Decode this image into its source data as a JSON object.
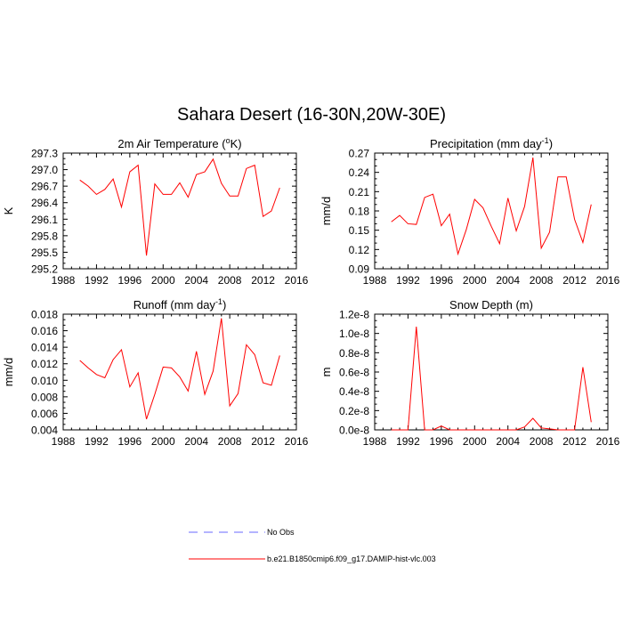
{
  "title": "Sahara Desert (16-30N,20W-30E)",
  "chart_data": [
    {
      "type": "line",
      "title_main": "2m Air Temperature (",
      "title_sup": "o",
      "title_tail": "K)",
      "ylabel": "K",
      "xlim": [
        1988,
        2016
      ],
      "xticks": [
        1988,
        1992,
        1996,
        2000,
        2004,
        2008,
        2012,
        2016
      ],
      "ylim": [
        295.2,
        297.3
      ],
      "yticks": [
        "295.2",
        "295.5",
        "295.8",
        "296.1",
        "296.4",
        "296.7",
        "297.0",
        "297.3"
      ],
      "x": [
        1990,
        1991,
        1992,
        1993,
        1994,
        1995,
        1996,
        1997,
        1998,
        1999,
        2000,
        2001,
        2002,
        2003,
        2004,
        2005,
        2006,
        2007,
        2008,
        2009,
        2010,
        2011,
        2012,
        2013,
        2014
      ],
      "series": [
        {
          "name": "b.e21.B1850cmip6.f09_g17.DAMIP-hist-vlc.003",
          "color": "#ff0000",
          "values": [
            296.81,
            296.7,
            296.55,
            296.64,
            296.83,
            296.32,
            296.96,
            297.08,
            295.44,
            296.74,
            296.55,
            296.55,
            296.76,
            296.5,
            296.91,
            296.96,
            297.19,
            296.75,
            296.52,
            296.52,
            297.02,
            297.08,
            296.15,
            296.25,
            296.67
          ]
        }
      ]
    },
    {
      "type": "line",
      "title_main": "Precipitation (mm day",
      "title_sup": "-1",
      "title_tail": ")",
      "ylabel": "mm/d",
      "xlim": [
        1988,
        2016
      ],
      "xticks": [
        1988,
        1992,
        1996,
        2000,
        2004,
        2008,
        2012,
        2016
      ],
      "ylim": [
        0.09,
        0.27
      ],
      "yticks": [
        "0.09",
        "0.12",
        "0.15",
        "0.18",
        "0.21",
        "0.24",
        "0.27"
      ],
      "x": [
        1990,
        1991,
        1992,
        1993,
        1994,
        1995,
        1996,
        1997,
        1998,
        1999,
        2000,
        2001,
        2002,
        2003,
        2004,
        2005,
        2006,
        2007,
        2008,
        2009,
        2010,
        2011,
        2012,
        2013,
        2014
      ],
      "series": [
        {
          "name": "b.e21.B1850cmip6.f09_g17.DAMIP-hist-vlc.003",
          "color": "#ff0000",
          "values": [
            0.163,
            0.173,
            0.16,
            0.159,
            0.201,
            0.206,
            0.157,
            0.175,
            0.113,
            0.151,
            0.198,
            0.185,
            0.156,
            0.129,
            0.2,
            0.149,
            0.187,
            0.263,
            0.122,
            0.147,
            0.233,
            0.233,
            0.167,
            0.131,
            0.19
          ]
        }
      ]
    },
    {
      "type": "line",
      "title_main": "Runoff (mm day",
      "title_sup": "-1",
      "title_tail": ")",
      "ylabel": "mm/d",
      "xlim": [
        1988,
        2016
      ],
      "xticks": [
        1988,
        1992,
        1996,
        2000,
        2004,
        2008,
        2012,
        2016
      ],
      "ylim": [
        0.004,
        0.018
      ],
      "yticks": [
        "0.004",
        "0.006",
        "0.008",
        "0.010",
        "0.012",
        "0.014",
        "0.016",
        "0.018"
      ],
      "x": [
        1990,
        1991,
        1992,
        1993,
        1994,
        1995,
        1996,
        1997,
        1998,
        1999,
        2000,
        2001,
        2002,
        2003,
        2004,
        2005,
        2006,
        2007,
        2008,
        2009,
        2010,
        2011,
        2012,
        2013,
        2014
      ],
      "series": [
        {
          "name": "b.e21.B1850cmip6.f09_g17.DAMIP-hist-vlc.003",
          "color": "#ff0000",
          "values": [
            0.0124,
            0.0115,
            0.0107,
            0.0103,
            0.0125,
            0.0137,
            0.0092,
            0.0109,
            0.0053,
            0.0083,
            0.0116,
            0.0115,
            0.0104,
            0.0087,
            0.0135,
            0.0083,
            0.0111,
            0.0175,
            0.0069,
            0.0084,
            0.0143,
            0.0131,
            0.0097,
            0.0094,
            0.013
          ]
        }
      ]
    },
    {
      "type": "line",
      "title_main": "Snow Depth (m)",
      "title_sup": "",
      "title_tail": "",
      "ylabel": "m",
      "xlim": [
        1988,
        2016
      ],
      "xticks": [
        1988,
        1992,
        1996,
        2000,
        2004,
        2008,
        2012,
        2016
      ],
      "ylim": [
        0,
        1.2e-08
      ],
      "yticks": [
        "0.0e-8",
        "0.2e-8",
        "0.4e-8",
        "0.6e-8",
        "0.8e-8",
        "1.0e-8",
        "1.2e-8"
      ],
      "x": [
        1990,
        1991,
        1992,
        1993,
        1994,
        1995,
        1996,
        1997,
        1998,
        1999,
        2000,
        2001,
        2002,
        2003,
        2004,
        2005,
        2006,
        2007,
        2008,
        2009,
        2010,
        2011,
        2012,
        2013,
        2014
      ],
      "series": [
        {
          "name": "b.e21.B1850cmip6.f09_g17.DAMIP-hist-vlc.003",
          "color": "#ff0000",
          "values": [
            0,
            0,
            0,
            1.07e-08,
            0,
            0,
            4e-10,
            0,
            0,
            0,
            0,
            0,
            0,
            0,
            0,
            0,
            3e-10,
            1.2e-09,
            2e-10,
            1e-10,
            0,
            0,
            0,
            6.5e-09,
            8e-10
          ]
        }
      ]
    }
  ],
  "legend": [
    {
      "label": "No Obs",
      "color": "#6a6aff",
      "dash": true
    },
    {
      "label": "b.e21.B1850cmip6.f09_g17.DAMIP-hist-vlc.003",
      "color": "#ff0000",
      "dash": false
    }
  ]
}
